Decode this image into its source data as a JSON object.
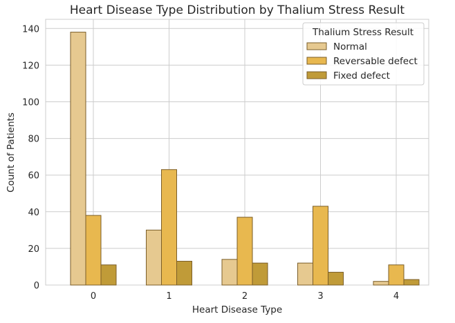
{
  "chart_data": {
    "type": "bar",
    "title": "Heart Disease Type Distribution by Thalium Stress Result",
    "xlabel": "Heart Disease Type",
    "ylabel": "Count of Patients",
    "categories": [
      "0",
      "1",
      "2",
      "3",
      "4"
    ],
    "ylim": [
      0,
      145
    ],
    "yticks": [
      0,
      20,
      40,
      60,
      80,
      100,
      120,
      140
    ],
    "grid": true,
    "legend": {
      "title": "Thalium Stress Result",
      "placement": "top-right"
    },
    "series": [
      {
        "name": "Normal",
        "color": "#e6c990",
        "values": [
          138,
          30,
          14,
          12,
          2
        ]
      },
      {
        "name": "Reversable defect",
        "color": "#e8b84f",
        "values": [
          38,
          63,
          37,
          43,
          11
        ]
      },
      {
        "name": "Fixed defect",
        "color": "#c09b38",
        "values": [
          11,
          13,
          12,
          7,
          3
        ]
      }
    ],
    "edge_color": "#7a5d28"
  }
}
